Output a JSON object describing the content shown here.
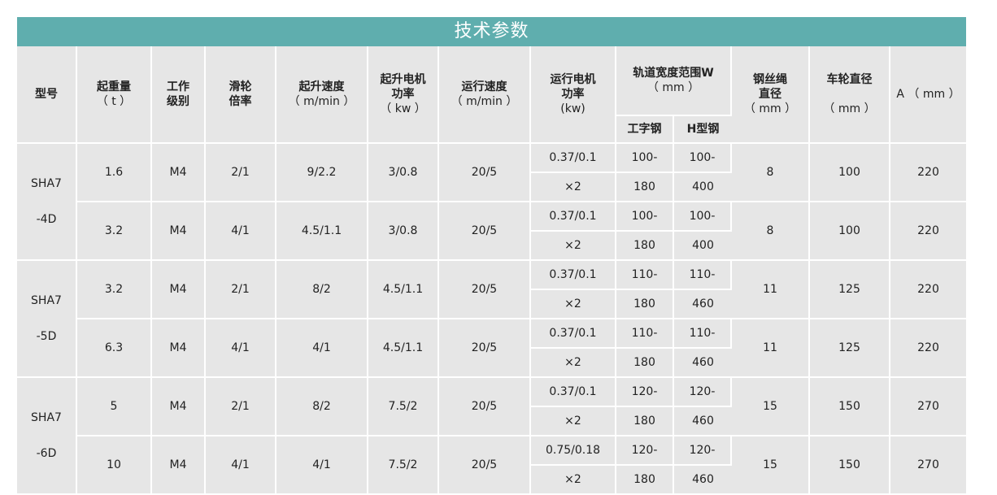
{
  "title": "技术参数",
  "headers": {
    "model": "型号",
    "load_1": "起重量",
    "load_2": "（ t ）",
    "class_1": "工作",
    "class_2": "级别",
    "ratio_1": "滑轮",
    "ratio_2": "倍率",
    "lift_speed_1": "起升速度",
    "lift_speed_2": "（ m/min ）",
    "lift_motor_1": "起升电机",
    "lift_motor_2": "功率",
    "lift_motor_3": "（ kw ）",
    "run_speed_1": "运行速度",
    "run_speed_2": "（ m/min ）",
    "run_motor_1": "运行电机",
    "run_motor_2": "功率",
    "run_motor_3": "(kw)",
    "track_1": "轨道宽度范围W",
    "track_2": "（ mm ）",
    "track_i": "工字钢",
    "track_h": "H型钢",
    "rope_1": "钢丝绳",
    "rope_2": "直径",
    "rope_3": "（ mm ）",
    "wheel_1": "车轮直径",
    "wheel_2": "（ mm ）",
    "a": "A （ mm ）"
  },
  "groups": [
    {
      "model_1": "SHA7",
      "model_2": "-4D",
      "rows": [
        {
          "load": "1.6",
          "class": "M4",
          "ratio": "2/1",
          "lift_speed": "9/2.2",
          "lift_motor": "3/0.8",
          "run_speed": "20/5",
          "run_motor_1": "0.37/0.1",
          "run_motor_2": "×2",
          "i_1": "100-",
          "i_2": "180",
          "h_1": "100-",
          "h_2": "400",
          "rope": "8",
          "wheel": "100",
          "a": "220"
        },
        {
          "load": "3.2",
          "class": "M4",
          "ratio": "4/1",
          "lift_speed": "4.5/1.1",
          "lift_motor": "3/0.8",
          "run_speed": "20/5",
          "run_motor_1": "0.37/0.1",
          "run_motor_2": "×2",
          "i_1": "100-",
          "i_2": "180",
          "h_1": "100-",
          "h_2": "400",
          "rope": "8",
          "wheel": "100",
          "a": "220"
        }
      ]
    },
    {
      "model_1": "SHA7",
      "model_2": "-5D",
      "rows": [
        {
          "load": "3.2",
          "class": "M4",
          "ratio": "2/1",
          "lift_speed": "8/2",
          "lift_motor": "4.5/1.1",
          "run_speed": "20/5",
          "run_motor_1": "0.37/0.1",
          "run_motor_2": "×2",
          "i_1": "110-",
          "i_2": "180",
          "h_1": "110-",
          "h_2": "460",
          "rope": "11",
          "wheel": "125",
          "a": "220"
        },
        {
          "load": "6.3",
          "class": "M4",
          "ratio": "4/1",
          "lift_speed": "4/1",
          "lift_motor": "4.5/1.1",
          "run_speed": "20/5",
          "run_motor_1": "0.37/0.1",
          "run_motor_2": "×2",
          "i_1": "110-",
          "i_2": "180",
          "h_1": "110-",
          "h_2": "460",
          "rope": "11",
          "wheel": "125",
          "a": "220"
        }
      ]
    },
    {
      "model_1": "SHA7",
      "model_2": "-6D",
      "rows": [
        {
          "load": "5",
          "class": "M4",
          "ratio": "2/1",
          "lift_speed": "8/2",
          "lift_motor": "7.5/2",
          "run_speed": "20/5",
          "run_motor_1": "0.37/0.1",
          "run_motor_2": "×2",
          "i_1": "120-",
          "i_2": "180",
          "h_1": "120-",
          "h_2": "460",
          "rope": "15",
          "wheel": "150",
          "a": "270"
        },
        {
          "load": "10",
          "class": "M4",
          "ratio": "4/1",
          "lift_speed": "4/1",
          "lift_motor": "7.5/2",
          "run_speed": "20/5",
          "run_motor_1": "0.75/0.18",
          "run_motor_2": "×2",
          "i_1": "120-",
          "i_2": "180",
          "h_1": "120-",
          "h_2": "460",
          "rope": "15",
          "wheel": "150",
          "a": "270"
        }
      ]
    }
  ]
}
